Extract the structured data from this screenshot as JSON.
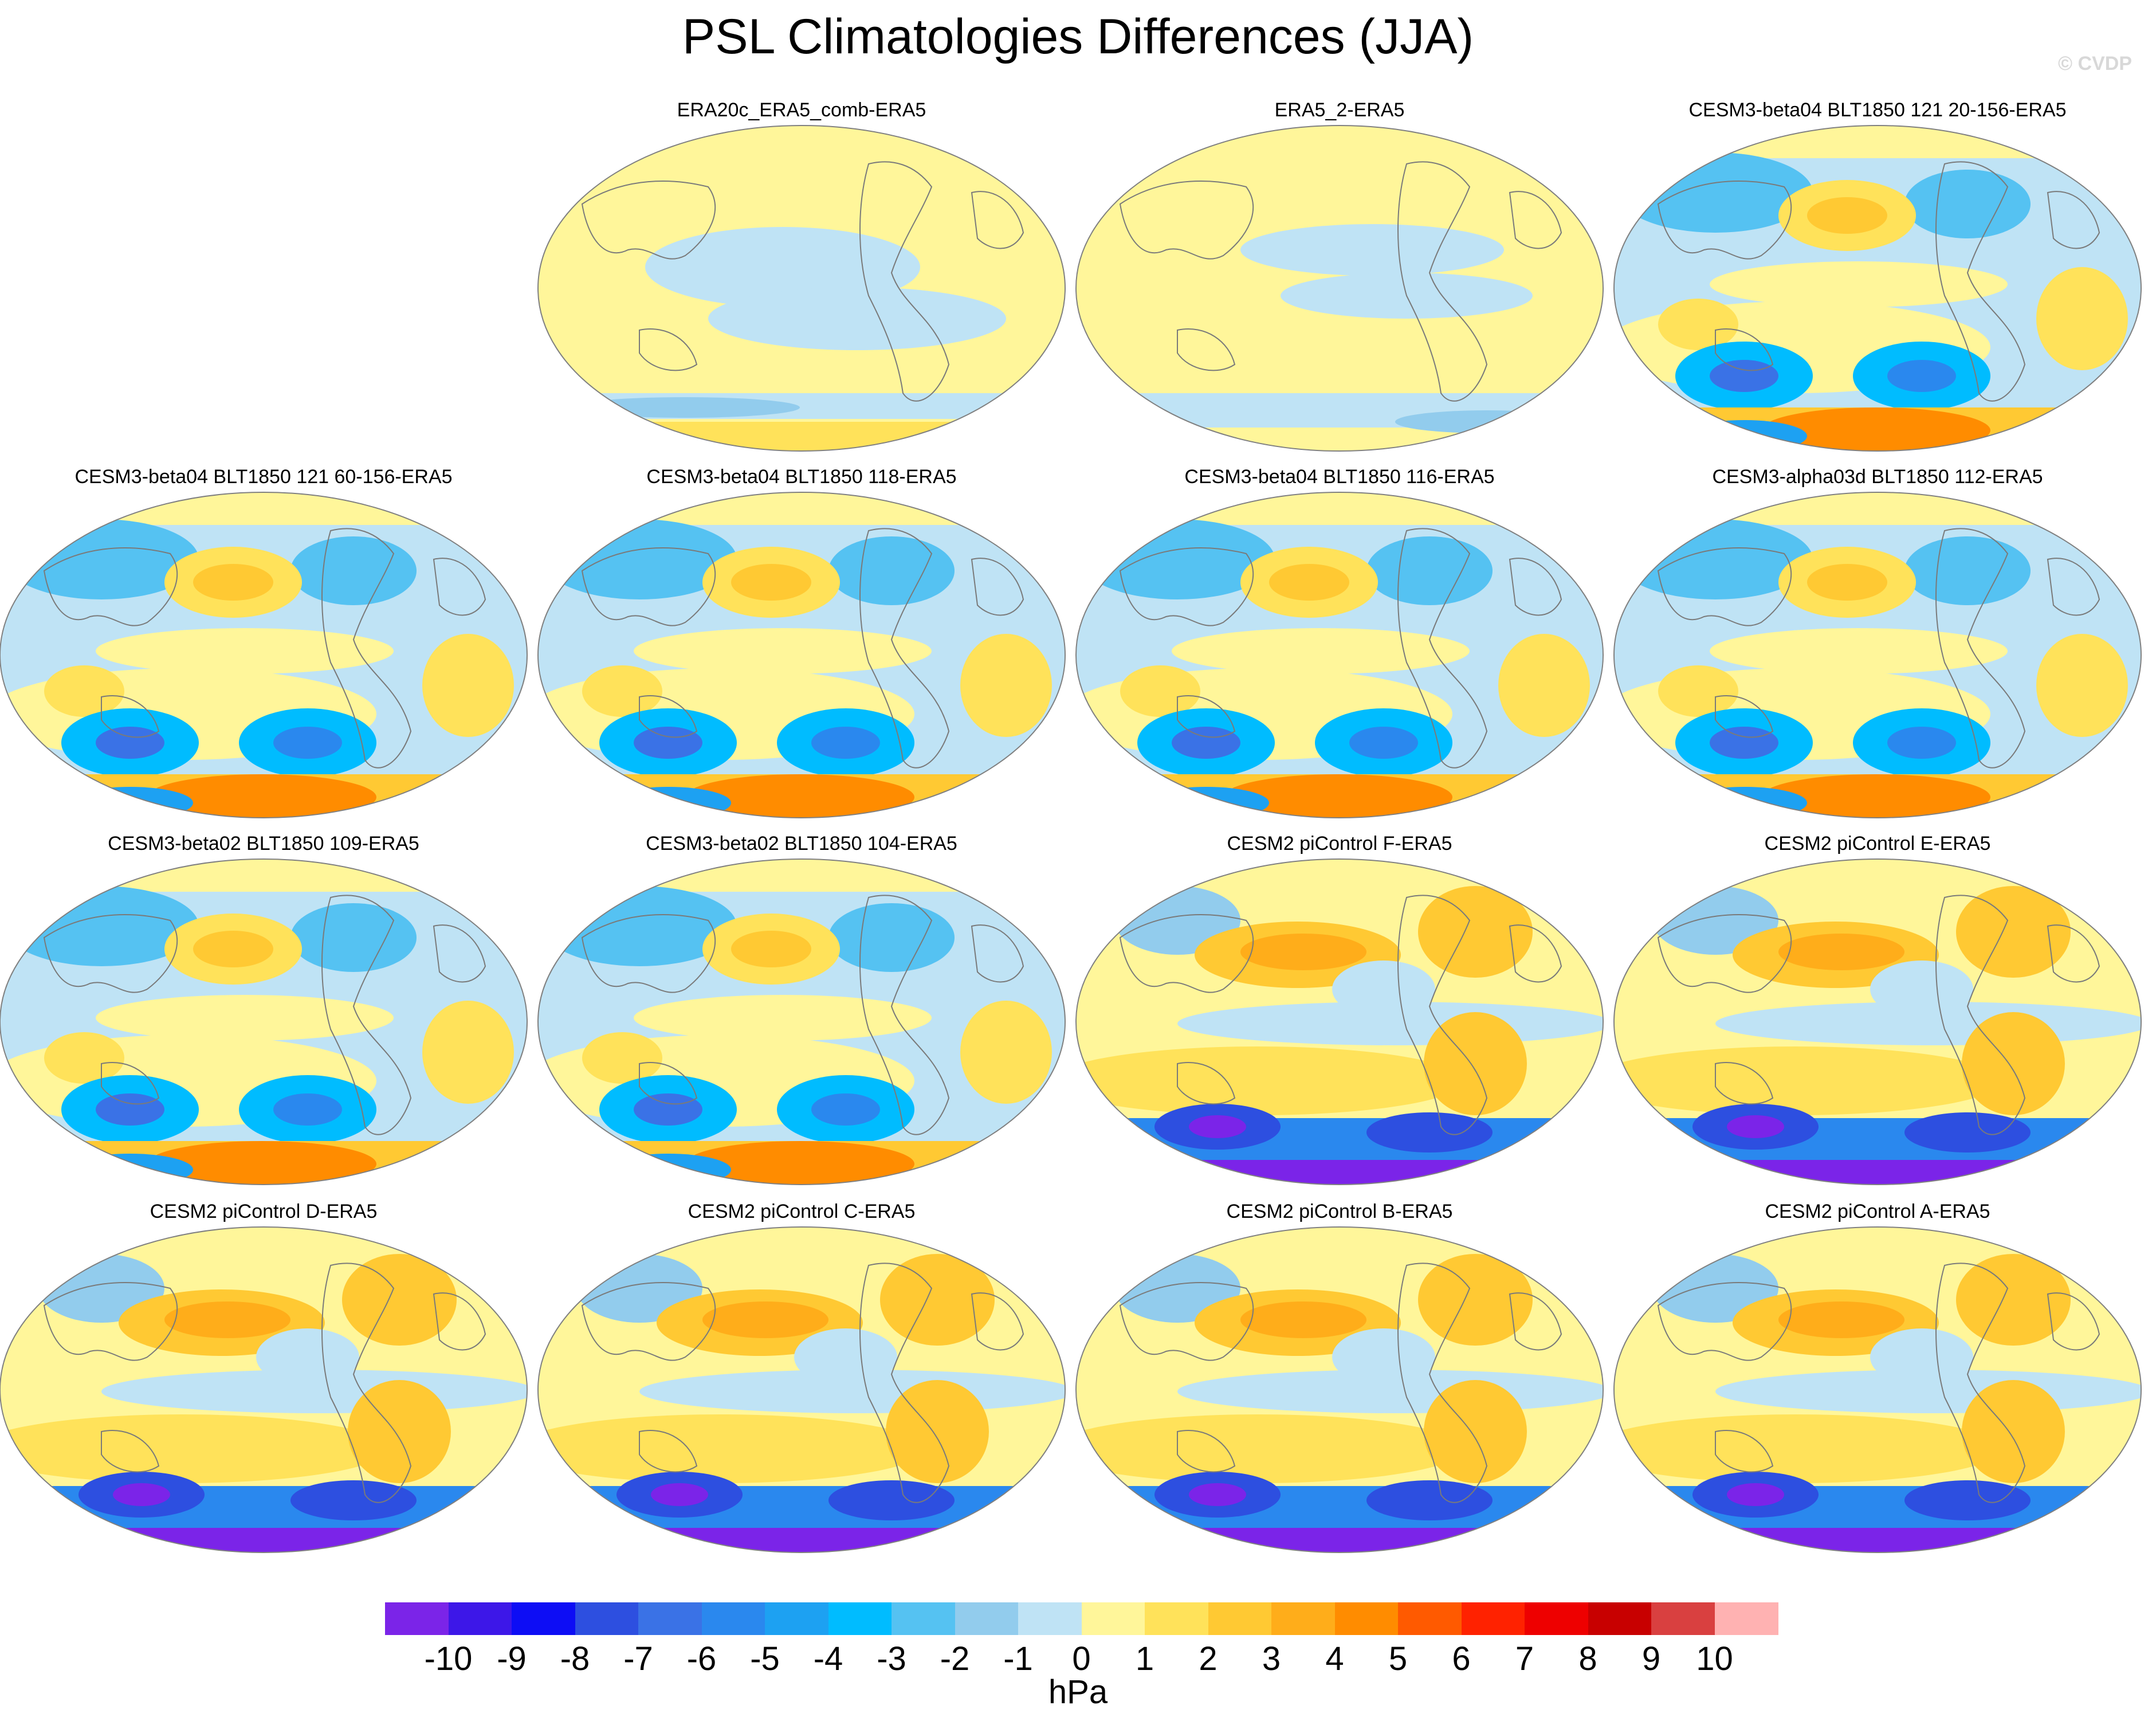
{
  "title": "PSL Climatologies Differences (JJA)",
  "credit": "© CVDP",
  "units": "hPa",
  "colorbar": {
    "labels": [
      "-10",
      "-9",
      "-8",
      "-7",
      "-6",
      "-5",
      "-4",
      "-3",
      "-2",
      "-1",
      "0",
      "1",
      "2",
      "3",
      "4",
      "5",
      "6",
      "7",
      "8",
      "9",
      "10"
    ],
    "colors": [
      "#7b24e8",
      "#3d17e8",
      "#0d0df5",
      "#2d4fe0",
      "#3a72e6",
      "#2a88ee",
      "#1da1f2",
      "#00bcff",
      "#55c2f2",
      "#92cced",
      "#bfe3f5",
      "#fff69a",
      "#ffe25a",
      "#ffc933",
      "#ffad1a",
      "#ff8c00",
      "#ff5a00",
      "#ff2200",
      "#ee0000",
      "#c80000",
      "#d94040",
      "#ffb2b2"
    ]
  },
  "panels": [
    {
      "label": "ERA20c_ERA5_comb-ERA5",
      "style": "obs1"
    },
    {
      "label": "ERA5_2-ERA5",
      "style": "obs2"
    },
    {
      "label": "CESM3-beta04 BLT1850 121 20-156-ERA5",
      "style": "beta"
    },
    {
      "label": "CESM3-beta04 BLT1850 121 60-156-ERA5",
      "style": "beta"
    },
    {
      "label": "CESM3-beta04 BLT1850 118-ERA5",
      "style": "beta"
    },
    {
      "label": "CESM3-beta04 BLT1850 116-ERA5",
      "style": "beta"
    },
    {
      "label": "CESM3-alpha03d BLT1850 112-ERA5",
      "style": "beta"
    },
    {
      "label": "CESM3-beta02 BLT1850 109-ERA5",
      "style": "beta"
    },
    {
      "label": "CESM3-beta02 BLT1850 104-ERA5",
      "style": "beta"
    },
    {
      "label": "CESM2 piControl F-ERA5",
      "style": "cesm2"
    },
    {
      "label": "CESM2 piControl E-ERA5",
      "style": "cesm2"
    },
    {
      "label": "CESM2 piControl D-ERA5",
      "style": "cesm2"
    },
    {
      "label": "CESM2 piControl C-ERA5",
      "style": "cesm2"
    },
    {
      "label": "CESM2 piControl B-ERA5",
      "style": "cesm2"
    },
    {
      "label": "CESM2 piControl A-ERA5",
      "style": "cesm2"
    }
  ]
}
